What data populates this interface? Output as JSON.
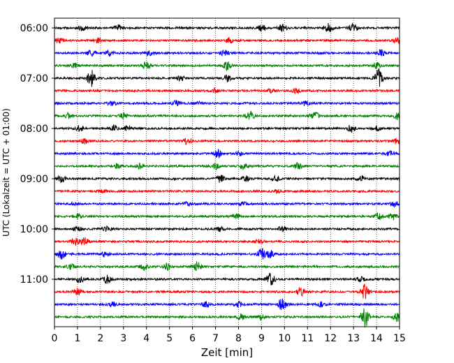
{
  "chart_data": {
    "type": "line",
    "title": "",
    "xlabel": "Zeit  [min]",
    "ylabel": "UTC (Lokalzeit = UTC + 01:00)",
    "xlim": [
      0,
      15
    ],
    "x_ticks": [
      "0",
      "1",
      "2",
      "3",
      "4",
      "5",
      "6",
      "7",
      "8",
      "9",
      "10",
      "11",
      "12",
      "13",
      "14",
      "15"
    ],
    "y_ticks": [
      {
        "label": "06:00",
        "row": 0
      },
      {
        "label": "07:00",
        "row": 4
      },
      {
        "label": "08:00",
        "row": 8
      },
      {
        "label": "09:00",
        "row": 12
      },
      {
        "label": "10:00",
        "row": 16
      },
      {
        "label": "11:00",
        "row": 20
      }
    ],
    "grid": "vertical dotted",
    "trace_colors": [
      "#000000",
      "#ff0000",
      "#0000ff",
      "#008000"
    ],
    "traces": [
      {
        "start": "06:00",
        "events": [
          [
            1.2,
            0.35
          ],
          [
            2.8,
            0.35
          ],
          [
            9.0,
            0.4
          ],
          [
            9.9,
            0.45
          ],
          [
            11.9,
            0.55
          ],
          [
            13.0,
            0.45
          ]
        ]
      },
      {
        "start": "06:15",
        "events": [
          [
            0.2,
            0.3
          ],
          [
            1.9,
            0.3
          ],
          [
            7.6,
            0.3
          ],
          [
            14.9,
            0.3
          ]
        ]
      },
      {
        "start": "06:30",
        "events": [
          [
            1.6,
            0.35
          ],
          [
            2.4,
            0.3
          ],
          [
            4.1,
            0.3
          ],
          [
            7.4,
            0.35
          ],
          [
            14.2,
            0.4
          ]
        ]
      },
      {
        "start": "06:45",
        "events": [
          [
            0.9,
            0.3
          ],
          [
            4.0,
            0.55
          ],
          [
            7.5,
            0.45
          ],
          [
            14.0,
            0.35
          ]
        ]
      },
      {
        "start": "07:00",
        "events": [
          [
            1.6,
            1.0
          ],
          [
            5.5,
            0.35
          ],
          [
            7.5,
            0.4
          ],
          [
            14.1,
            1.2
          ]
        ]
      },
      {
        "start": "07:15",
        "events": [
          [
            7.0,
            0.25
          ],
          [
            9.4,
            0.25
          ],
          [
            10.5,
            0.25
          ]
        ]
      },
      {
        "start": "07:30",
        "events": [
          [
            2.5,
            0.25
          ],
          [
            5.3,
            0.3
          ],
          [
            6.2,
            0.25
          ],
          [
            10.9,
            0.3
          ]
        ]
      },
      {
        "start": "07:45",
        "events": [
          [
            0.6,
            0.3
          ],
          [
            3.0,
            0.3
          ],
          [
            8.5,
            0.5
          ],
          [
            11.3,
            0.5
          ],
          [
            14.9,
            0.4
          ]
        ]
      },
      {
        "start": "08:00",
        "events": [
          [
            1.1,
            0.3
          ],
          [
            2.6,
            0.35
          ],
          [
            3.2,
            0.3
          ],
          [
            12.9,
            0.4
          ],
          [
            14.0,
            0.3
          ]
        ]
      },
      {
        "start": "08:15",
        "events": [
          [
            1.3,
            0.3
          ],
          [
            5.8,
            0.45
          ],
          [
            14.9,
            0.35
          ]
        ]
      },
      {
        "start": "08:30",
        "events": [
          [
            7.1,
            0.45
          ],
          [
            8.0,
            0.3
          ],
          [
            14.6,
            0.3
          ]
        ]
      },
      {
        "start": "08:45",
        "events": [
          [
            2.7,
            0.3
          ],
          [
            3.7,
            0.3
          ],
          [
            7.0,
            0.3
          ],
          [
            8.2,
            0.35
          ],
          [
            10.6,
            0.35
          ]
        ]
      },
      {
        "start": "09:00",
        "events": [
          [
            0.3,
            0.35
          ],
          [
            7.2,
            0.45
          ],
          [
            8.3,
            0.3
          ],
          [
            9.6,
            0.3
          ],
          [
            13.3,
            0.35
          ]
        ]
      },
      {
        "start": "09:15",
        "events": [
          [
            2.1,
            0.2
          ],
          [
            9.7,
            0.2
          ]
        ]
      },
      {
        "start": "09:30",
        "events": [
          [
            0.9,
            0.2
          ],
          [
            5.8,
            0.25
          ],
          [
            8.2,
            0.25
          ],
          [
            14.8,
            0.3
          ]
        ]
      },
      {
        "start": "09:45",
        "events": [
          [
            1.0,
            0.3
          ],
          [
            7.9,
            0.3
          ],
          [
            14.1,
            0.35
          ],
          [
            14.7,
            0.35
          ]
        ]
      },
      {
        "start": "10:00",
        "events": [
          [
            1.0,
            0.3
          ],
          [
            2.3,
            0.3
          ],
          [
            7.2,
            0.3
          ],
          [
            9.9,
            0.3
          ]
        ]
      },
      {
        "start": "10:15",
        "events": [
          [
            0.9,
            0.45
          ],
          [
            1.3,
            0.4
          ],
          [
            8.9,
            0.3
          ]
        ]
      },
      {
        "start": "10:30",
        "events": [
          [
            0.3,
            0.6
          ],
          [
            2.2,
            0.3
          ],
          [
            9.0,
            0.6
          ],
          [
            9.4,
            0.45
          ]
        ]
      },
      {
        "start": "10:45",
        "events": [
          [
            0.7,
            0.3
          ],
          [
            3.9,
            0.35
          ],
          [
            4.9,
            0.4
          ],
          [
            6.2,
            0.55
          ]
        ]
      },
      {
        "start": "11:00",
        "events": [
          [
            1.1,
            0.4
          ],
          [
            2.3,
            0.45
          ],
          [
            9.4,
            0.9
          ],
          [
            13.3,
            0.3
          ]
        ]
      },
      {
        "start": "11:15",
        "events": [
          [
            1.0,
            0.35
          ],
          [
            10.7,
            0.5
          ],
          [
            13.5,
            0.85
          ]
        ]
      },
      {
        "start": "11:30",
        "events": [
          [
            2.5,
            0.3
          ],
          [
            6.6,
            0.3
          ],
          [
            8.0,
            0.3
          ],
          [
            9.9,
            0.75
          ],
          [
            11.6,
            0.3
          ]
        ]
      },
      {
        "start": "11:45",
        "events": [
          [
            8.1,
            0.35
          ],
          [
            9.0,
            0.3
          ],
          [
            13.5,
            1.15
          ],
          [
            14.9,
            0.5
          ]
        ]
      }
    ]
  }
}
